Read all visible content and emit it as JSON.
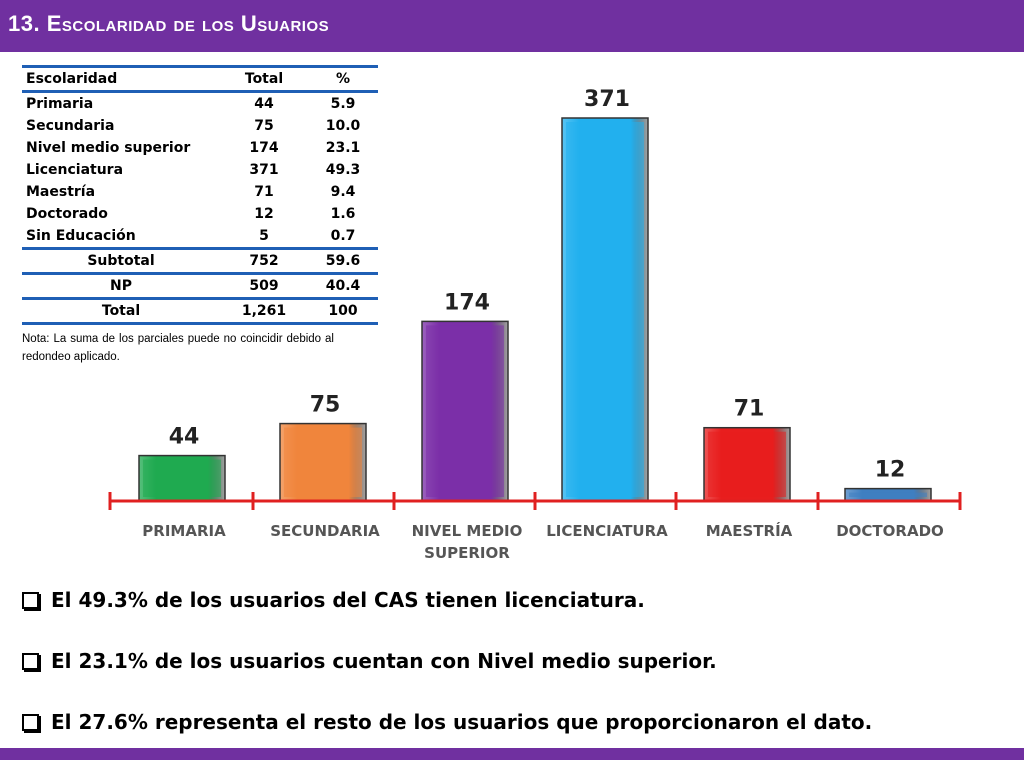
{
  "header": {
    "title_number": "13.",
    "title_text": "Escolaridad de los Usuarios"
  },
  "table": {
    "headers": [
      "Escolaridad",
      "Total",
      "%"
    ],
    "rows": [
      [
        "Primaria",
        "44",
        "5.9"
      ],
      [
        "Secundaria",
        "75",
        "10.0"
      ],
      [
        "Nivel medio superior",
        "174",
        "23.1"
      ],
      [
        "Licenciatura",
        "371",
        "49.3"
      ],
      [
        "Maestría",
        "71",
        "9.4"
      ],
      [
        "Doctorado",
        "12",
        "1.6"
      ],
      [
        "Sin Educación",
        "5",
        "0.7"
      ]
    ],
    "subtotal": [
      "Subtotal",
      "752",
      "59.6"
    ],
    "np": [
      "NP",
      "509",
      "40.4"
    ],
    "total": [
      "Total",
      "1,261",
      "100"
    ]
  },
  "note": "Nota: La suma de los parciales puede no coincidir debido al redondeo aplicado.",
  "chart_data": {
    "type": "bar",
    "categories": [
      "PRIMARIA",
      "SECUNDARIA",
      "NIVEL MEDIO SUPERIOR",
      "LICENCIATURA",
      "MAESTRÍA",
      "DOCTORADO"
    ],
    "values": [
      44,
      75,
      174,
      371,
      71,
      12
    ],
    "colors": [
      "#1faa50",
      "#f0853c",
      "#7b2fa8",
      "#22b0ee",
      "#e81e1e",
      "#3f7fc1"
    ],
    "axis_color": "#e02020",
    "grid": false,
    "legend": "none"
  },
  "bullets": [
    "El 49.3% de los usuarios del CAS tienen licenciatura.",
    "El 23.1% de los usuarios cuentan con Nivel medio superior.",
    "El  27.6% representa el resto de los usuarios que proporcionaron el dato."
  ]
}
